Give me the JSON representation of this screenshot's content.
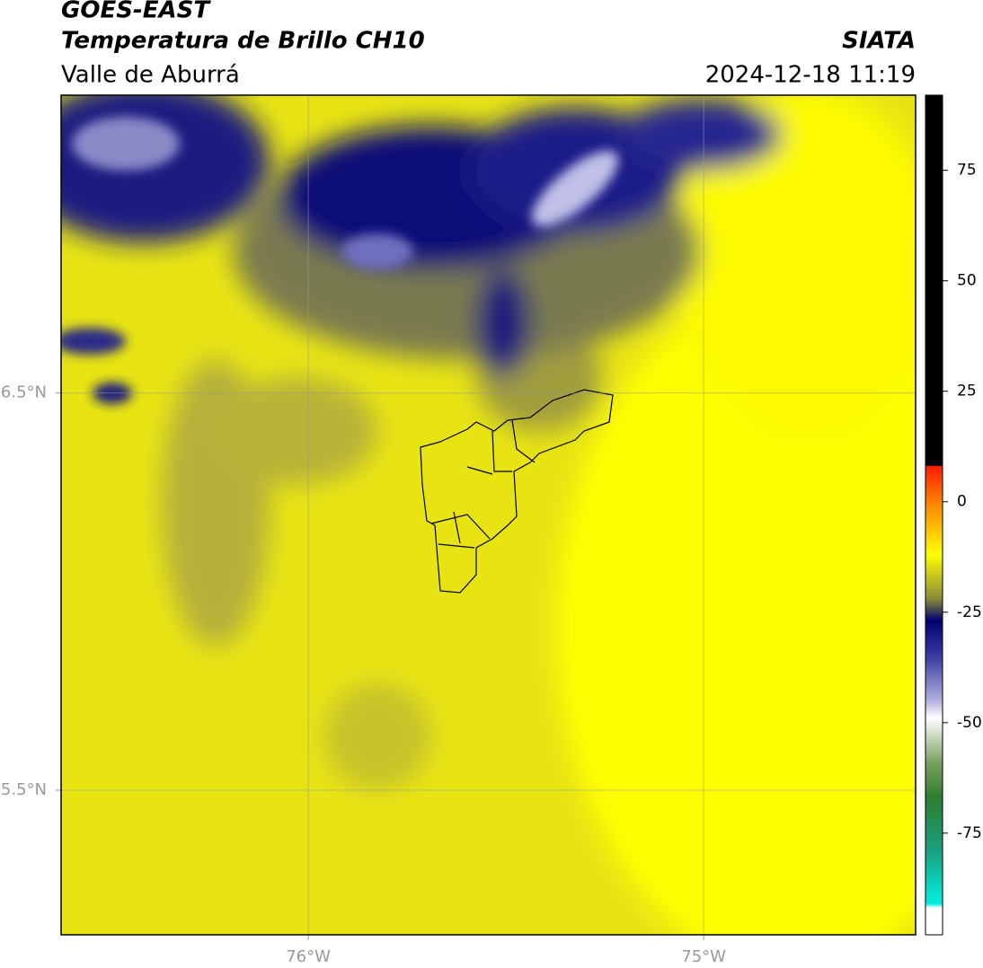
{
  "header": {
    "title": "GOES-EAST",
    "subtitle": "Temperatura de Brillo CH10",
    "region": "Valle de Aburrá",
    "source": "SIATA",
    "datetime": "2024-12-18 11:19"
  },
  "map": {
    "xlim": [
      -76.625,
      -74.464
    ],
    "ylim": [
      5.136,
      7.25
    ],
    "xticks": [
      {
        "value": -76,
        "label": "76°W"
      },
      {
        "value": -75,
        "label": "75°W"
      }
    ],
    "yticks": [
      {
        "value": 6.5,
        "label": "6.5°N"
      },
      {
        "value": 5.5,
        "label": "5.5°N"
      }
    ]
  },
  "colorbar": {
    "ylim": [
      -98,
      92
    ],
    "yticks": [
      75,
      50,
      25,
      0,
      -25,
      -50,
      -75
    ]
  }
}
